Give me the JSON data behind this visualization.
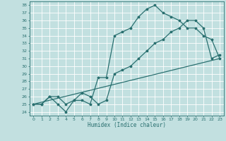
{
  "title": "",
  "xlabel": "Humidex (Indice chaleur)",
  "xlim": [
    -0.5,
    23.5
  ],
  "ylim": [
    23.5,
    38.5
  ],
  "xticks": [
    0,
    1,
    2,
    3,
    4,
    5,
    6,
    7,
    8,
    9,
    10,
    11,
    12,
    13,
    14,
    15,
    16,
    17,
    18,
    19,
    20,
    21,
    22,
    23
  ],
  "yticks": [
    24,
    25,
    26,
    27,
    28,
    29,
    30,
    31,
    32,
    33,
    34,
    35,
    36,
    37,
    38
  ],
  "bg_color": "#c2e0e0",
  "line_color": "#2a7070",
  "grid_color": "#ffffff",
  "line1_x": [
    0,
    1,
    2,
    3,
    4,
    5,
    6,
    7,
    8,
    9,
    10,
    11,
    12,
    13,
    14,
    15,
    16,
    17,
    18,
    19,
    20,
    21,
    22,
    23
  ],
  "line1_y": [
    25.0,
    25.0,
    26.0,
    25.0,
    24.0,
    25.5,
    25.5,
    25.0,
    28.5,
    28.5,
    34.0,
    34.5,
    35.0,
    36.5,
    37.5,
    38.0,
    37.0,
    36.5,
    36.0,
    35.0,
    35.0,
    34.0,
    33.5,
    31.0
  ],
  "line2_x": [
    0,
    1,
    2,
    3,
    4,
    5,
    6,
    7,
    8,
    9,
    10,
    11,
    12,
    13,
    14,
    15,
    16,
    17,
    18,
    19,
    20,
    21,
    22,
    23
  ],
  "line2_y": [
    25.0,
    25.0,
    26.0,
    26.0,
    25.0,
    25.5,
    26.5,
    26.0,
    25.0,
    25.5,
    29.0,
    29.5,
    30.0,
    31.0,
    32.0,
    33.0,
    33.5,
    34.5,
    35.0,
    36.0,
    36.0,
    35.0,
    31.0,
    31.5
  ],
  "line3_x": [
    0,
    23
  ],
  "line3_y": [
    25.0,
    31.0
  ]
}
